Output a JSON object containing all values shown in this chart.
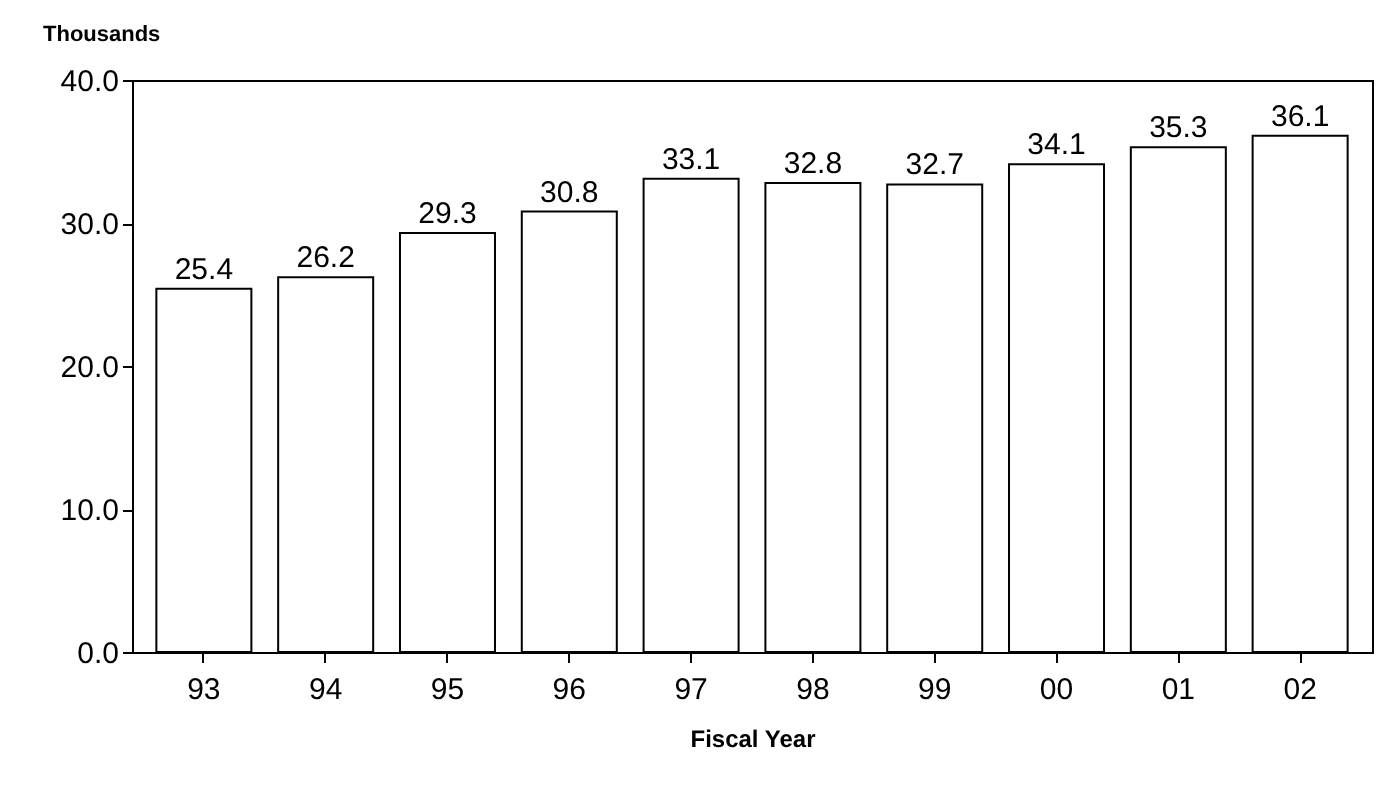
{
  "chart_data": {
    "type": "bar",
    "xlabel": "Fiscal Year",
    "ylabel": "Thousands",
    "categories": [
      "93",
      "94",
      "95",
      "96",
      "97",
      "98",
      "99",
      "00",
      "01",
      "02"
    ],
    "values": [
      25.4,
      26.2,
      29.3,
      30.8,
      33.1,
      32.8,
      32.7,
      34.1,
      35.3,
      36.1
    ],
    "color": "#ffffff",
    "data_labels": true,
    "grid": false,
    "ylim": [
      0,
      40
    ],
    "yticks": [
      {
        "value": 0,
        "label": "0.0"
      },
      {
        "value": 10,
        "label": "10.0"
      },
      {
        "value": 20,
        "label": "20.0"
      },
      {
        "value": 30,
        "label": "30.0"
      },
      {
        "value": 40,
        "label": "40.0"
      }
    ]
  }
}
